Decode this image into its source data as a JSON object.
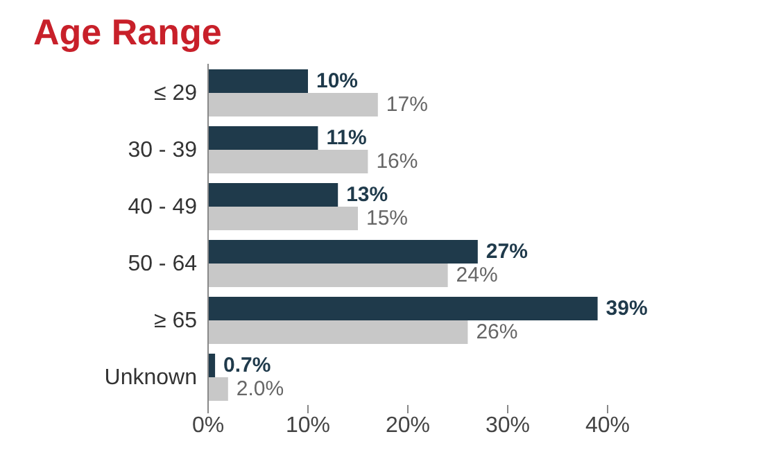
{
  "chart_data": {
    "type": "bar",
    "orientation": "horizontal",
    "title": "Age Range",
    "categories": [
      "≤ 29",
      "30 - 39",
      "40 - 49",
      "50 - 64",
      "≥ 65",
      "Unknown"
    ],
    "series": [
      {
        "color": "#1f3a4b",
        "values": [
          10,
          11,
          13,
          27,
          39,
          0.7
        ],
        "value_labels": [
          "10%",
          "11%",
          "13%",
          "27%",
          "39%",
          "0.7%"
        ]
      },
      {
        "color": "#c8c8c8",
        "values": [
          17,
          16,
          15,
          24,
          26,
          2.0
        ],
        "value_labels": [
          "17%",
          "16%",
          "15%",
          "24%",
          "26%",
          "2.0%"
        ]
      }
    ],
    "xlim": [
      0,
      40
    ],
    "xticks": [
      {
        "value": 0,
        "label": "0%"
      },
      {
        "value": 10,
        "label": "10%"
      },
      {
        "value": 20,
        "label": "20%"
      },
      {
        "value": 30,
        "label": "30%"
      },
      {
        "value": 40,
        "label": "40%"
      }
    ],
    "grid": false,
    "legend": false
  }
}
